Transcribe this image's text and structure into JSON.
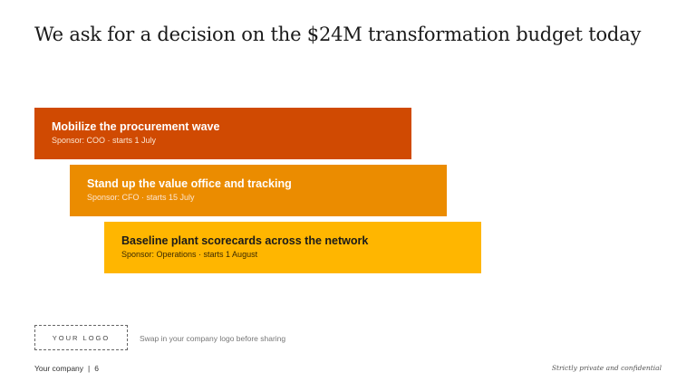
{
  "slide": {
    "title": "We ask for a decision on the $24M transformation budget today"
  },
  "workstreams": [
    {
      "title": "Mobilize the procurement wave",
      "subtitle": "Sponsor: COO · starts 1 July",
      "color": "#d04a02"
    },
    {
      "title": "Stand up the value office and tracking",
      "subtitle": "Sponsor: CFO · starts 15 July",
      "color": "#eb8c00"
    },
    {
      "title": "Baseline plant scorecards across the network",
      "subtitle": "Sponsor: Operations · starts 1 August",
      "color": "#ffb600"
    }
  ],
  "logo": {
    "placeholder": "YOUR LOGO",
    "note": "Swap in your company logo before sharing"
  },
  "footer": {
    "company": "Your company",
    "separator": "|",
    "page_number": "6",
    "confidentiality": "Strictly private and confidential"
  }
}
